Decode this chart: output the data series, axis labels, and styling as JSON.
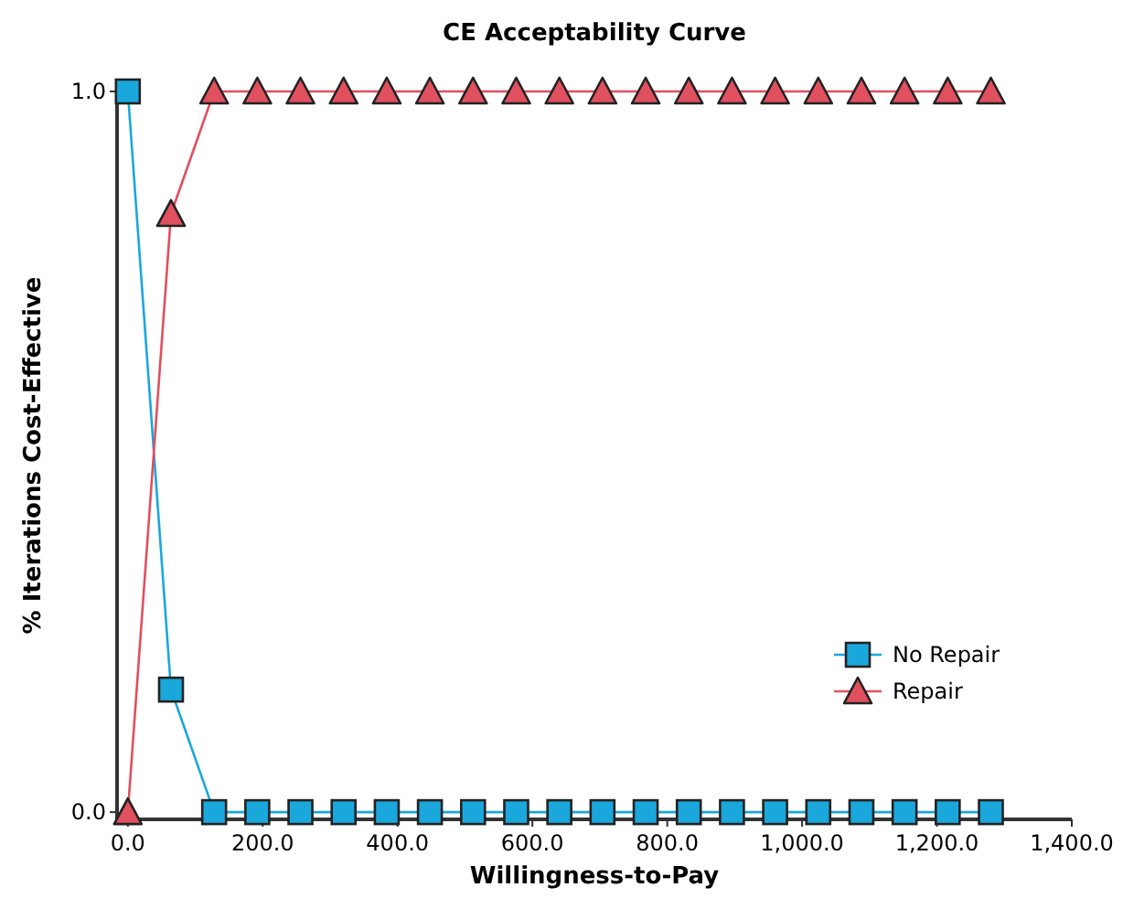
{
  "chart_data": {
    "type": "line",
    "title": "CE Acceptability Curve",
    "xlabel": "Willingness-to-Pay",
    "ylabel": "% Iterations Cost-Effective",
    "x": [
      0,
      64,
      128,
      192,
      256,
      320,
      384,
      448,
      512,
      576,
      640,
      704,
      768,
      832,
      896,
      960,
      1024,
      1088,
      1152,
      1216,
      1280
    ],
    "series": [
      {
        "name": "No Repair",
        "color": "#1aa7dc",
        "marker": "square",
        "values": [
          1.0,
          0.17,
          0,
          0,
          0,
          0,
          0,
          0,
          0,
          0,
          0,
          0,
          0,
          0,
          0,
          0,
          0,
          0,
          0,
          0,
          0
        ]
      },
      {
        "name": "Repair",
        "color": "#e0505f",
        "marker": "triangle",
        "values": [
          0,
          0.83,
          1.0,
          1.0,
          1.0,
          1.0,
          1.0,
          1.0,
          1.0,
          1.0,
          1.0,
          1.0,
          1.0,
          1.0,
          1.0,
          1.0,
          1.0,
          1.0,
          1.0,
          1.0,
          1.0
        ]
      }
    ],
    "xlim": [
      -16,
      1400
    ],
    "xticks": [
      {
        "value": 0,
        "label": "0.0"
      },
      {
        "value": 200,
        "label": "200.0"
      },
      {
        "value": 400,
        "label": "400.0"
      },
      {
        "value": 600,
        "label": "600.0"
      },
      {
        "value": 800,
        "label": "800.0"
      },
      {
        "value": 1000,
        "label": "1,000.0"
      },
      {
        "value": 1200,
        "label": "1,200.0"
      },
      {
        "value": 1400,
        "label": "1,400.0"
      }
    ],
    "ylim": [
      -0.01,
      1.0
    ],
    "yticks": [
      {
        "value": 0,
        "label": "0.0"
      },
      {
        "value": 1,
        "label": "1.0"
      }
    ],
    "grid": false,
    "legend": "bottom right",
    "line_style": "solid"
  }
}
